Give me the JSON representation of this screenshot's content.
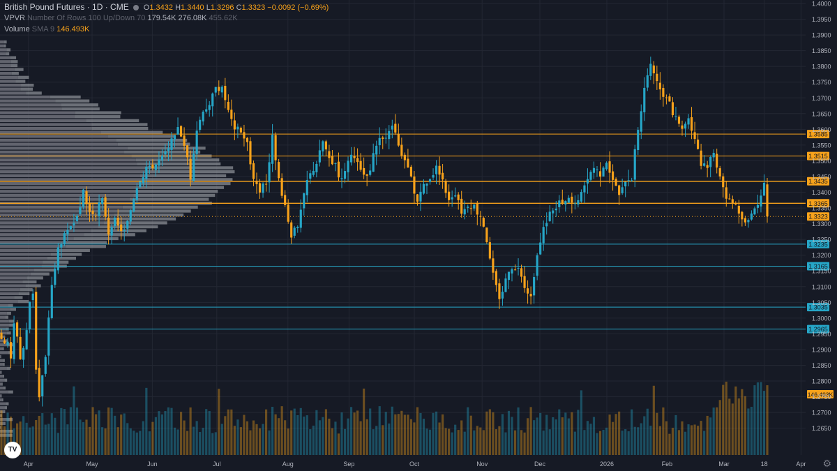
{
  "legend": {
    "title": "British Pound Futures · 1D · CME",
    "o_label": "O",
    "o": "1.3432",
    "h_label": "H",
    "h": "1.3440",
    "l_label": "L",
    "l": "1.3296",
    "c_label": "C",
    "c": "1.3323",
    "chg": "−0.0092 (−0.69%)",
    "vpvr_label": "VPVR",
    "vpvr_params": "Number Of Rows 100 Up/Down 70",
    "vpvr_up": "179.54K",
    "vpvr_down": "276.08K",
    "vpvr_total": "455.62K",
    "volume_label": "Volume",
    "volume_sma": "SMA 9",
    "volume_value": "146.493K"
  },
  "colors": {
    "background": "#161a25",
    "up": "#26a6c7",
    "down": "#f7a21b",
    "grid": "#232733",
    "text": "#b2b5be",
    "vpvr": "#787b86"
  },
  "icons": {
    "logo": "tradingview-logo-icon",
    "settings": "gear-icon"
  },
  "logo_text": "TV",
  "settings_glyph": "⚙",
  "chart_data": {
    "type": "candlestick",
    "ylim": [
      1.2565,
      1.4
    ],
    "y_ticks": [
      "1.4000",
      "1.3950",
      "1.3900",
      "1.3850",
      "1.3800",
      "1.3750",
      "1.3700",
      "1.3650",
      "1.3600",
      "1.3550",
      "1.3500",
      "1.3450",
      "1.3400",
      "1.3350",
      "1.3300",
      "1.3250",
      "1.3200",
      "1.3150",
      "1.3100",
      "1.3050",
      "1.3000",
      "1.2950",
      "1.2900",
      "1.2850",
      "1.2800",
      "1.2750",
      "1.2700",
      "1.2650"
    ],
    "x_ticks": [
      "Apr",
      "May",
      "Jun",
      "Jul",
      "Aug",
      "Sep",
      "Oct",
      "Nov",
      "Dec",
      "2026",
      "Feb",
      "Mar",
      "18",
      "Apr"
    ],
    "x_tick_pos": [
      0.034,
      0.11,
      0.182,
      0.259,
      0.344,
      0.417,
      0.495,
      0.576,
      0.645,
      0.725,
      0.797,
      0.865,
      0.913,
      0.957
    ],
    "levels": [
      {
        "value": "1.3585",
        "type": "resistance"
      },
      {
        "value": "1.3515",
        "type": "resistance"
      },
      {
        "value": "1.3435",
        "type": "resistance"
      },
      {
        "value": "1.3365",
        "type": "resistance"
      },
      {
        "value": "1.3323",
        "type": "last_price"
      },
      {
        "value": "1.3235",
        "type": "support"
      },
      {
        "value": "1.3165",
        "type": "support"
      },
      {
        "value": "1.3035",
        "type": "support"
      },
      {
        "value": "1.2965",
        "type": "support"
      }
    ],
    "volume_sma_label": "146.493K",
    "anchors": [
      [
        0,
        1.2935
      ],
      [
        2,
        1.293
      ],
      [
        3,
        1.288
      ],
      [
        4,
        1.299
      ],
      [
        6,
        1.288
      ],
      [
        8,
        1.295
      ],
      [
        9,
        1.305
      ],
      [
        10,
        1.309
      ],
      [
        11,
        1.284
      ],
      [
        12,
        1.276
      ],
      [
        14,
        1.288
      ],
      [
        16,
        1.31
      ],
      [
        18,
        1.322
      ],
      [
        20,
        1.326
      ],
      [
        22,
        1.329
      ],
      [
        24,
        1.333
      ],
      [
        26,
        1.34
      ],
      [
        28,
        1.335
      ],
      [
        30,
        1.333
      ],
      [
        32,
        1.338
      ],
      [
        34,
        1.327
      ],
      [
        36,
        1.331
      ],
      [
        38,
        1.328
      ],
      [
        40,
        1.33
      ],
      [
        42,
        1.338
      ],
      [
        44,
        1.343
      ],
      [
        46,
        1.347
      ],
      [
        48,
        1.348
      ],
      [
        50,
        1.35
      ],
      [
        52,
        1.352
      ],
      [
        54,
        1.356
      ],
      [
        56,
        1.36
      ],
      [
        58,
        1.356
      ],
      [
        60,
        1.344
      ],
      [
        62,
        1.36
      ],
      [
        64,
        1.365
      ],
      [
        66,
        1.368
      ],
      [
        68,
        1.373
      ],
      [
        70,
        1.374
      ],
      [
        72,
        1.365
      ],
      [
        74,
        1.361
      ],
      [
        76,
        1.36
      ],
      [
        78,
        1.356
      ],
      [
        80,
        1.343
      ],
      [
        82,
        1.34
      ],
      [
        84,
        1.343
      ],
      [
        86,
        1.358
      ],
      [
        88,
        1.344
      ],
      [
        90,
        1.335
      ],
      [
        92,
        1.326
      ],
      [
        94,
        1.33
      ],
      [
        96,
        1.34
      ],
      [
        98,
        1.346
      ],
      [
        100,
        1.35
      ],
      [
        102,
        1.357
      ],
      [
        104,
        1.351
      ],
      [
        106,
        1.348
      ],
      [
        108,
        1.344
      ],
      [
        110,
        1.35
      ],
      [
        112,
        1.352
      ],
      [
        114,
        1.348
      ],
      [
        116,
        1.344
      ],
      [
        118,
        1.352
      ],
      [
        120,
        1.356
      ],
      [
        122,
        1.358
      ],
      [
        124,
        1.362
      ],
      [
        126,
        1.355
      ],
      [
        128,
        1.35
      ],
      [
        130,
        1.344
      ],
      [
        132,
        1.336
      ],
      [
        134,
        1.343
      ],
      [
        136,
        1.345
      ],
      [
        138,
        1.348
      ],
      [
        140,
        1.343
      ],
      [
        142,
        1.338
      ],
      [
        144,
        1.34
      ],
      [
        146,
        1.333
      ],
      [
        148,
        1.335
      ],
      [
        150,
        1.336
      ],
      [
        152,
        1.332
      ],
      [
        154,
        1.324
      ],
      [
        156,
        1.315
      ],
      [
        158,
        1.306
      ],
      [
        160,
        1.313
      ],
      [
        162,
        1.315
      ],
      [
        164,
        1.316
      ],
      [
        166,
        1.31
      ],
      [
        168,
        1.308
      ],
      [
        170,
        1.319
      ],
      [
        172,
        1.328
      ],
      [
        174,
        1.333
      ],
      [
        176,
        1.336
      ],
      [
        178,
        1.337
      ],
      [
        180,
        1.339
      ],
      [
        182,
        1.337
      ],
      [
        184,
        1.339
      ],
      [
        186,
        1.344
      ],
      [
        188,
        1.349
      ],
      [
        190,
        1.346
      ],
      [
        192,
        1.35
      ],
      [
        194,
        1.344
      ],
      [
        196,
        1.34
      ],
      [
        198,
        1.343
      ],
      [
        200,
        1.345
      ],
      [
        202,
        1.36
      ],
      [
        204,
        1.372
      ],
      [
        206,
        1.382
      ],
      [
        208,
        1.376
      ],
      [
        210,
        1.37
      ],
      [
        212,
        1.368
      ],
      [
        214,
        1.363
      ],
      [
        216,
        1.359
      ],
      [
        218,
        1.363
      ],
      [
        220,
        1.356
      ],
      [
        222,
        1.349
      ],
      [
        224,
        1.349
      ],
      [
        226,
        1.353
      ],
      [
        228,
        1.344
      ],
      [
        230,
        1.339
      ],
      [
        232,
        1.336
      ],
      [
        234,
        1.334
      ],
      [
        236,
        1.331
      ],
      [
        238,
        1.334
      ],
      [
        240,
        1.336
      ],
      [
        242,
        1.342
      ],
      [
        243,
        1.3323
      ]
    ]
  }
}
